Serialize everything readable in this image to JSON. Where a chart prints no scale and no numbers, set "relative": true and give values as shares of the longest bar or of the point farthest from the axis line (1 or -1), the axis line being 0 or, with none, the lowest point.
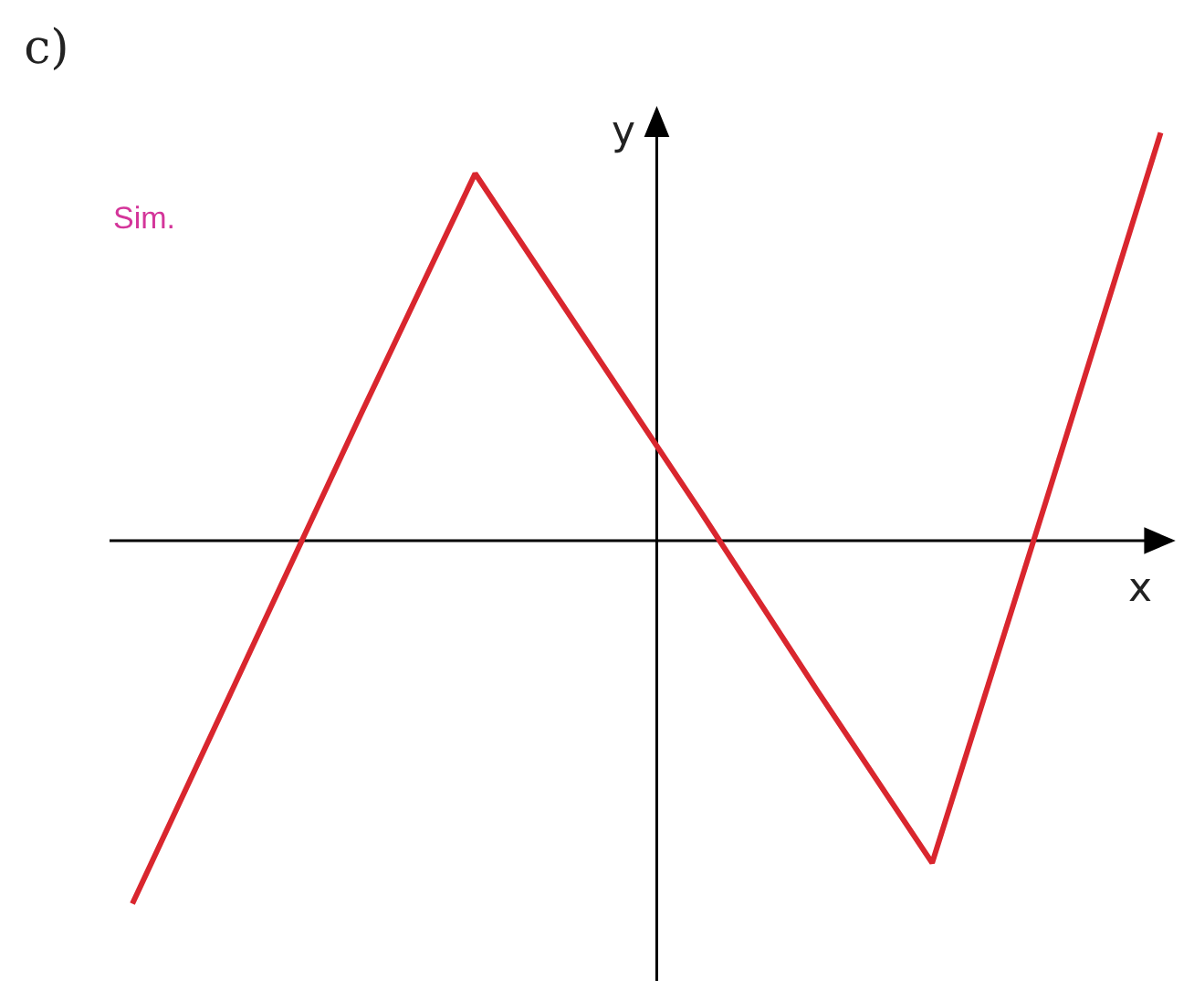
{
  "chart_data": {
    "type": "line",
    "title": "c)",
    "xlabel": "x",
    "ylabel": "y",
    "relative": true,
    "annotations": [
      "Sim."
    ],
    "categories": [
      null,
      null,
      null,
      null,
      null,
      null,
      null,
      null,
      null,
      null
    ],
    "series": [
      {
        "color": "#d9262e",
        "values": [
          -0.89,
          -0.29,
          0.31,
          0.9,
          0.48,
          0.06,
          -0.37,
          -0.79,
          0.1,
          1
        ]
      }
    ],
    "grid": false,
    "marker": "none",
    "line_style": "solid"
  }
}
